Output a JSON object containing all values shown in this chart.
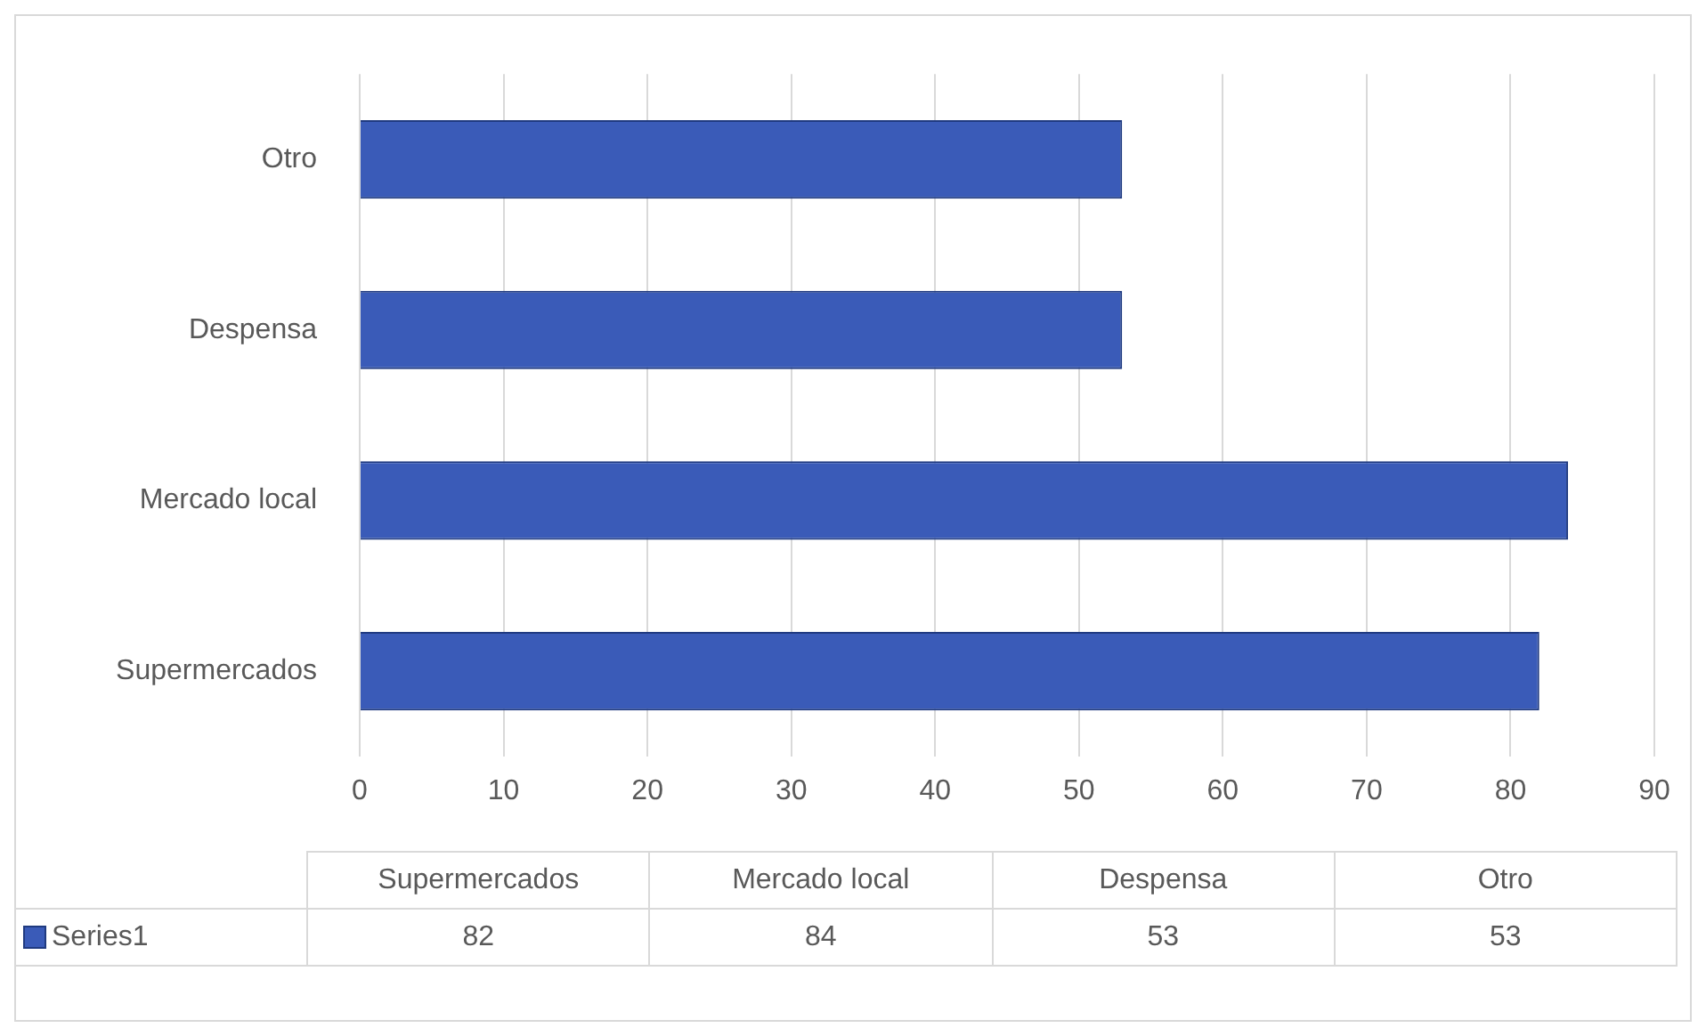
{
  "chart_data": [
    {
      "type": "bar",
      "orientation": "horizontal",
      "categories": [
        "Otro",
        "Despensa",
        "Mercado local",
        "Supermercados"
      ],
      "series": [
        {
          "color": "#3a5bb8",
          "values": [
            53,
            53,
            84,
            82
          ]
        }
      ],
      "xlim": [
        0,
        90
      ],
      "xticks": [
        0,
        10,
        20,
        30,
        40,
        50,
        60,
        70,
        80,
        90
      ],
      "grid": "x"
    },
    {
      "type": "other",
      "categories": [
        "Supermercados",
        "Mercado local",
        "Despensa",
        "Otro"
      ],
      "series": [
        {
          "name": "Series1",
          "color": "#3a5bb8",
          "values": [
            82,
            84,
            53,
            53
          ]
        }
      ],
      "data_labels": true
    }
  ]
}
